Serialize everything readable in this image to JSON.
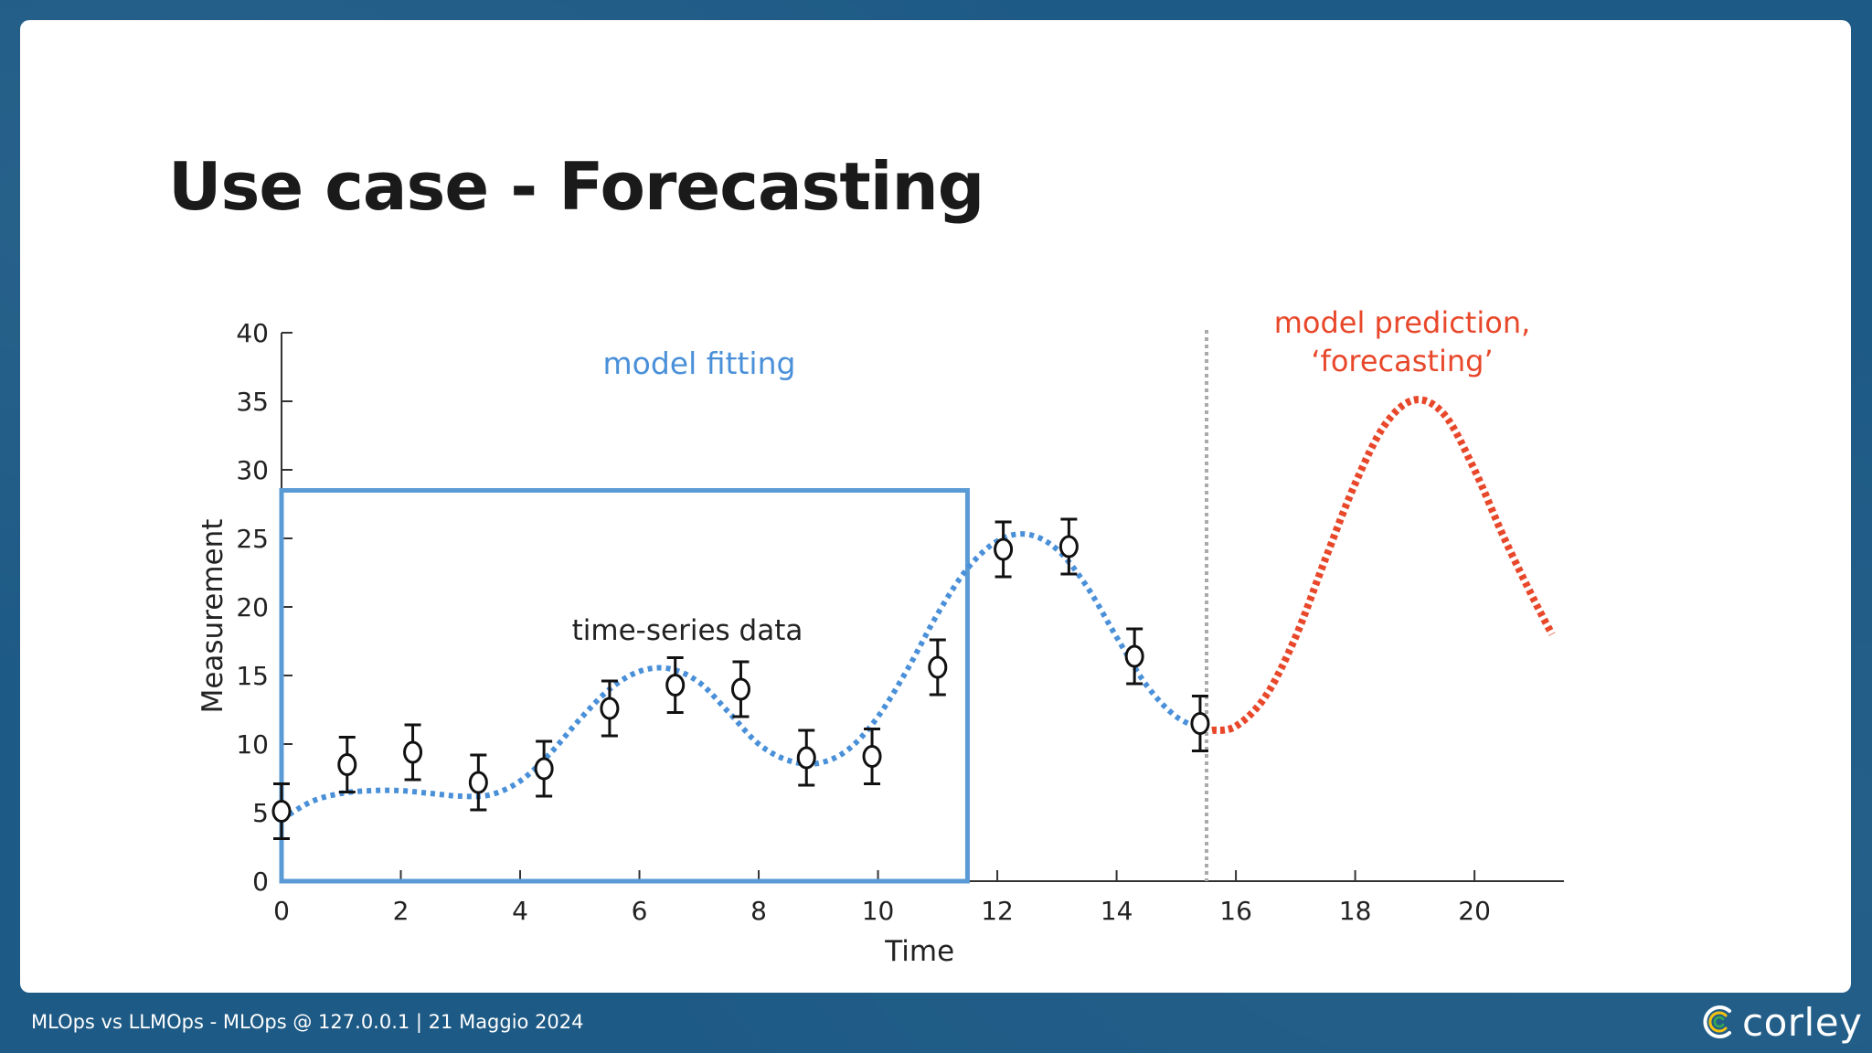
{
  "slide": {
    "title": "Use case - Forecasting"
  },
  "footer": {
    "text": "MLOps vs LLMOps - MLOps @ 127.0.0.1 | 21 Maggio 2024",
    "brand": "corley",
    "brand_icon": "corley-logo-icon"
  },
  "chart_data": {
    "type": "scatter",
    "xlabel": "Time",
    "ylabel": "Measurement",
    "xlim": [
      0,
      21.5
    ],
    "ylim": [
      0,
      40
    ],
    "xticks": [
      0,
      2,
      4,
      6,
      8,
      10,
      12,
      14,
      16,
      18,
      20
    ],
    "yticks": [
      0,
      5,
      10,
      15,
      20,
      25,
      30,
      35,
      40
    ],
    "grid": false,
    "annotations": {
      "fitting_label": "model fitting",
      "data_label": "time-series data",
      "prediction_label_line1": "model prediction,",
      "prediction_label_line2": "‘forecasting’"
    },
    "colors": {
      "fit": "#4a90d9",
      "forecast": "#e8472a",
      "box": "#5b9bd5",
      "points": "#111111",
      "divider": "#aaaaaa"
    },
    "training_window": {
      "x": [
        0,
        11.5
      ],
      "y": [
        0,
        28.5
      ]
    },
    "forecast_start": 15.6,
    "points": [
      {
        "x": 0.0,
        "y": 5.1,
        "err": 2.0
      },
      {
        "x": 1.1,
        "y": 8.5,
        "err": 2.0
      },
      {
        "x": 2.2,
        "y": 9.4,
        "err": 2.0
      },
      {
        "x": 3.3,
        "y": 7.2,
        "err": 2.0
      },
      {
        "x": 4.4,
        "y": 8.2,
        "err": 2.0
      },
      {
        "x": 5.5,
        "y": 12.6,
        "err": 2.0
      },
      {
        "x": 6.6,
        "y": 14.3,
        "err": 2.0
      },
      {
        "x": 7.7,
        "y": 14.0,
        "err": 2.0
      },
      {
        "x": 8.8,
        "y": 9.0,
        "err": 2.0
      },
      {
        "x": 9.9,
        "y": 9.1,
        "err": 2.0
      },
      {
        "x": 11.0,
        "y": 15.6,
        "err": 2.0
      },
      {
        "x": 12.1,
        "y": 24.2,
        "err": 2.0
      },
      {
        "x": 13.2,
        "y": 24.4,
        "err": 2.0
      },
      {
        "x": 14.3,
        "y": 16.4,
        "err": 2.0
      },
      {
        "x": 15.4,
        "y": 11.5,
        "err": 2.0
      }
    ],
    "series": [
      {
        "role": "fit",
        "x": [
          0,
          0.5,
          1,
          1.5,
          2,
          2.5,
          3,
          3.5,
          4,
          4.5,
          5,
          5.5,
          6,
          6.5,
          7,
          7.5,
          8,
          8.5,
          9,
          9.5,
          10,
          10.5,
          11,
          11.5,
          12,
          12.5,
          13,
          13.5,
          14,
          14.5,
          15,
          15.5
        ],
        "y": [
          4.5,
          5.8,
          6.4,
          6.6,
          6.6,
          6.4,
          6.2,
          6.3,
          7.3,
          9.3,
          11.8,
          14.0,
          15.3,
          15.5,
          14.5,
          12.3,
          10.0,
          8.8,
          8.6,
          9.6,
          12.0,
          15.5,
          19.5,
          22.8,
          24.8,
          25.3,
          24.2,
          21.5,
          17.8,
          14.3,
          12.0,
          11.0
        ]
      },
      {
        "role": "forecast",
        "x": [
          15.6,
          16,
          16.5,
          17,
          17.5,
          18,
          18.5,
          19,
          19.5,
          20,
          20.5,
          21,
          21.3
        ],
        "y": [
          11.0,
          11.3,
          13.5,
          17.8,
          23.5,
          29.0,
          33.3,
          35.1,
          34.0,
          30.0,
          25.0,
          20.5,
          18.0
        ]
      }
    ]
  }
}
